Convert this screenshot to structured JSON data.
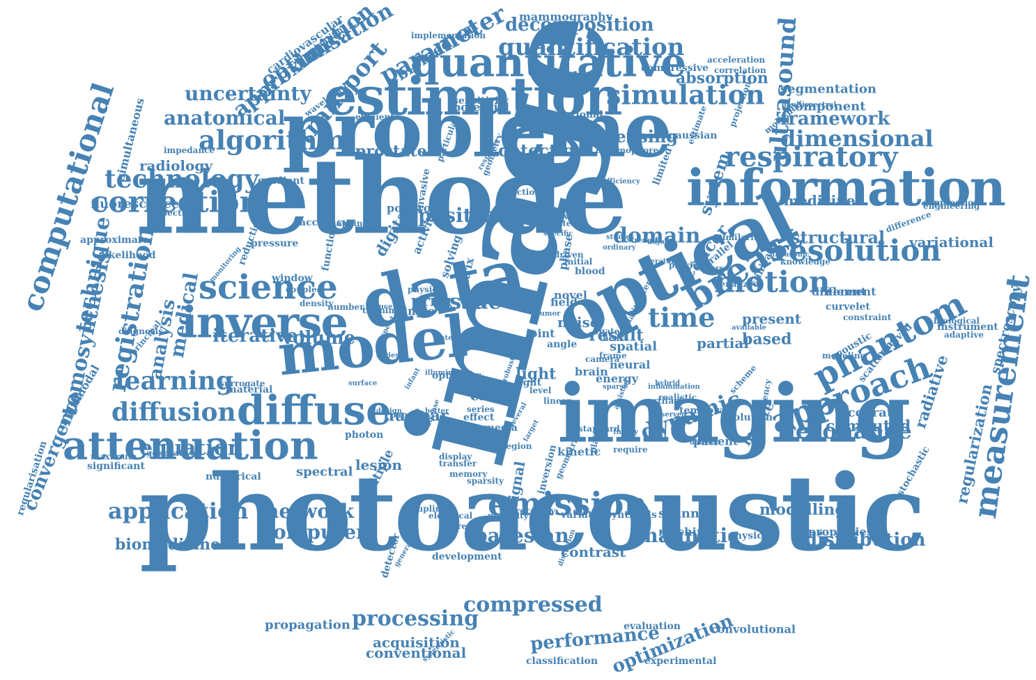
{
  "cloud": {
    "color": "#4682b4",
    "words": [
      "image",
      "methode",
      "photoacoustic",
      "imaging",
      "optical",
      "probleme",
      "data",
      "model",
      "estimation",
      "information",
      "inverse",
      "quantitative",
      "measurement",
      "approach",
      "attenuation",
      "diffuse",
      "science",
      "phantom",
      "correction",
      "resolution",
      "breast",
      "emission",
      "motion",
      "respiratory",
      "algorithm",
      "technology",
      "learning",
      "diffusion",
      "simulation",
      "quantification",
      "computational",
      "registration",
      "tomosynthesis",
      "technique",
      "ultrasound",
      "dynamic",
      "resonance",
      "distribution",
      "time",
      "application",
      "network",
      "compressed",
      "processing",
      "magnetic",
      "bayesian",
      "computer",
      "equation",
      "positron",
      "domain",
      "structural",
      "dimensional",
      "framework",
      "uncertainty",
      "anatomical",
      "parameter",
      "optimisation",
      "approximation",
      "transport",
      "decomposition",
      "absorption",
      "sensing",
      "detection",
      "prostate",
      "cancer",
      "system",
      "medical",
      "analysis",
      "volume",
      "tissue",
      "iterative",
      "convergence",
      "spectroscopy",
      "regularization",
      "optimization",
      "performance",
      "acquisition",
      "conventional",
      "propagation",
      "biomedicine",
      "biomedical",
      "mammography",
      "segmentation",
      "component",
      "medicine",
      "variational",
      "radiology",
      "fluorescence",
      "modelling",
      "lesion",
      "nuclear",
      "spectral",
      "light",
      "result",
      "prior",
      "carlo",
      "monte",
      "partial",
      "based",
      "present",
      "computed",
      "accurate",
      "radiative",
      "regularisation",
      "multimodal",
      "simultaneous",
      "cardiovascular",
      "illumination",
      "implementation",
      "sensitivity",
      "potential",
      "efficient",
      "wavelength",
      "impedance",
      "chromophore",
      "gradient",
      "likelihood",
      "window",
      "maximum",
      "significant",
      "generative",
      "numerical",
      "material",
      "neural",
      "spatial",
      "element",
      "different",
      "clinical",
      "scanner",
      "machine",
      "physical",
      "properties",
      "contrast",
      "signal",
      "multiple",
      "kinetic",
      "detector",
      "development",
      "experimental",
      "evaluation",
      "convolutional",
      "classification",
      "synthesis",
      "variation",
      "recovery",
      "inversion",
      "geometric",
      "modality",
      "inference",
      "electrical",
      "sampling",
      "display",
      "transfer",
      "memory",
      "sparsity",
      "effect",
      "media",
      "photon",
      "series",
      "region",
      "error",
      "optic",
      "light",
      "level",
      "linear",
      "energy",
      "brain",
      "noise",
      "field",
      "blood",
      "novel",
      "wave",
      "work",
      "single",
      "joint",
      "angle",
      "artifact",
      "driven",
      "initial",
      "phase",
      "digital",
      "positron",
      "human",
      "invasive",
      "software",
      "scatter",
      "specific",
      "studies",
      "strength",
      "adjoint",
      "operator",
      "provide",
      "knowledge",
      "ultrasonic",
      "parallel",
      "similarity",
      "penalized",
      "curvelet",
      "constraint",
      "acoustic",
      "modeling",
      "instrument",
      "adaptive",
      "biological",
      "scattering",
      "resolved",
      "stochastic",
      "frequency",
      "solution",
      "temporal",
      "patient",
      "scheme",
      "hybrid",
      "realistic",
      "observed",
      "require",
      "standard",
      "platform",
      "solving",
      "matrix",
      "activity",
      "physic",
      "function",
      "mapping",
      "pressure",
      "reduction",
      "monitoring",
      "coupled",
      "density",
      "number",
      "training",
      "reduce",
      "principal",
      "diagnosis",
      "surrogate",
      "spectrum",
      "accuracy",
      "approximate",
      "estimate",
      "limited",
      "efficiency",
      "gaussian",
      "projection",
      "molecular",
      "difference",
      "suppression",
      "engineering",
      "functional",
      "direction",
      "geometry",
      "response",
      "particular",
      "multispectral",
      "acceleration",
      "correlation",
      "compressive",
      "ordinary",
      "gated",
      "heart",
      "camera",
      "quality",
      "arterial",
      "study",
      "frame",
      "design",
      "paper",
      "infant",
      "disease",
      "speed",
      "gate",
      "better",
      "robust",
      "sparse",
      "theory",
      "assisted",
      "synergistic",
      "generation",
      "distortion",
      "several",
      "target",
      "dataset",
      "tumor",
      "available",
      "series",
      "surface",
      "inflammation",
      "illumination",
      "infrared"
    ]
  }
}
